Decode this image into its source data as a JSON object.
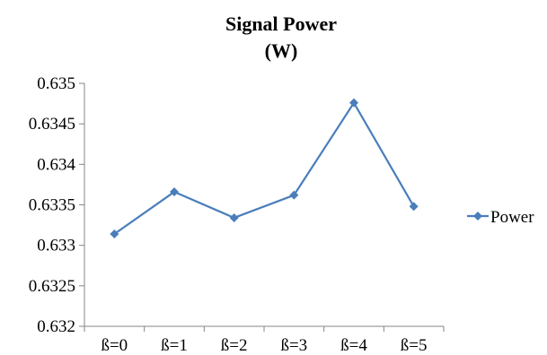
{
  "chart_data": {
    "type": "line",
    "title": "Signal Power",
    "subtitle": "(W)",
    "categories": [
      "ß=0",
      "ß=1",
      "ß=2",
      "ß=3",
      "ß=4",
      "ß=5"
    ],
    "series": [
      {
        "name": "Power",
        "values": [
          0.63314,
          0.63366,
          0.63334,
          0.63362,
          0.63476,
          0.63348
        ]
      }
    ],
    "ylim": [
      0.632,
      0.635
    ],
    "yticks": [
      0.632,
      0.6325,
      0.633,
      0.6335,
      0.634,
      0.6345,
      0.635
    ],
    "ytick_labels": [
      "0.632",
      "0.6325",
      "0.633",
      "0.6335",
      "0.634",
      "0.6345",
      "0.635"
    ],
    "grid": false,
    "legend_position": "right",
    "colors": {
      "series": "#4a7ebb",
      "axis": "#868686"
    }
  }
}
